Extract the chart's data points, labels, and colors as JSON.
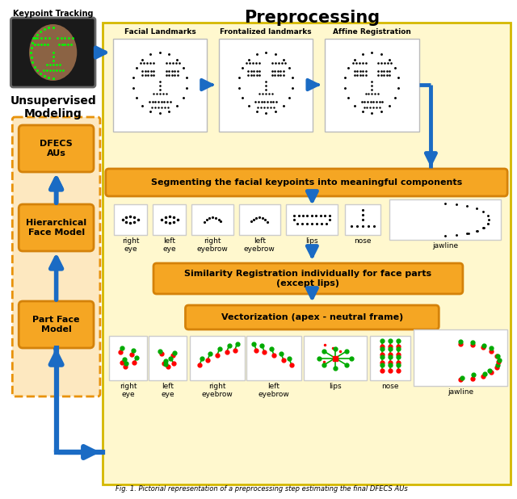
{
  "title": "Preprocessing",
  "caption": "Fig. 1. Pictorial representation of a preprocessing step estimating the final DFECS AUs",
  "orange": "#F5A623",
  "orange_edge": "#D4820A",
  "arrow_color": "#1A6BC4",
  "cream_bg": "#FFF8CE",
  "cream_edge": "#D4B800",
  "left_panel_bg": "#FDE8C0",
  "left_panel_edge": "#E8920A",
  "white_box": "#FFFFFF",
  "grey_edge": "#AAAAAA",
  "unsupervised_title": "Unsupervised\nModeling",
  "left_boxes": [
    "DFECS\nAUs",
    "Hierarchical\nFace Model",
    "Part Face\nModel"
  ],
  "top_labels": [
    "Facial Landmarks",
    "Frontalized landmarks",
    "Affine Registration"
  ],
  "segment_text": "Segmenting the facial keypoints into meaningful components",
  "similarity_text": "Similarity Registration individually for face parts\n(except lips)",
  "vector_text": "Vectorization (apex - neutral frame)",
  "parts_row1": [
    "right\neye",
    "left\neye",
    "right\neyebrow",
    "left\neyebrow",
    "lips",
    "nose",
    "jawline"
  ],
  "parts_row2": [
    "right\neye",
    "left\neye",
    "right\neyebrow",
    "left\neyebrow",
    "lips",
    "nose",
    "jawline"
  ]
}
